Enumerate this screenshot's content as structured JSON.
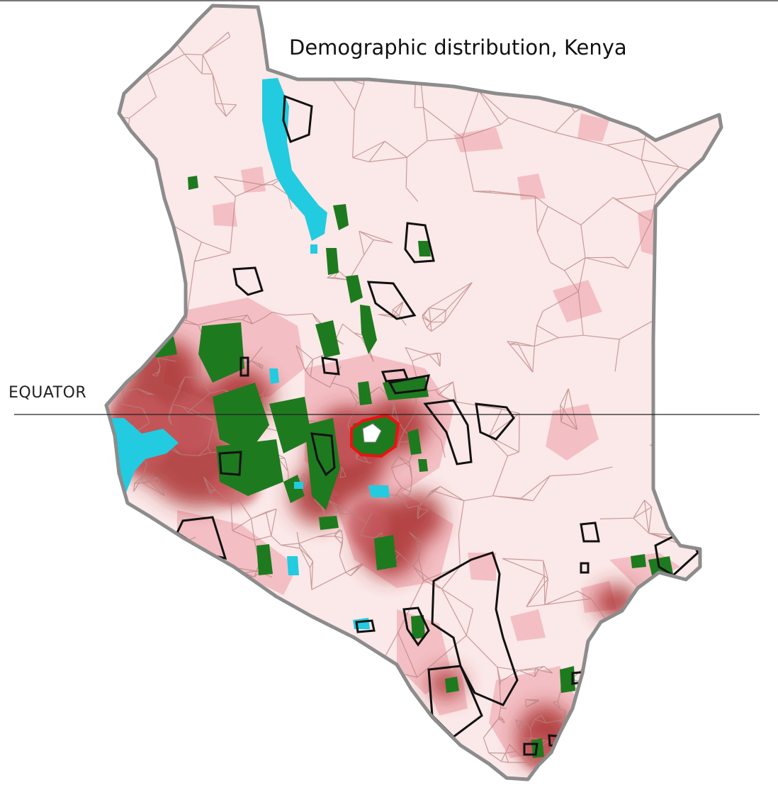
{
  "title": "Demographic distribution, Kenya",
  "equator_label": "EQUATOR",
  "colors": {
    "land_base": "#fbe8e8",
    "outline": "#8c8c8c",
    "district_lines": "#b98080",
    "low_density": "#f3bfc4",
    "high_density": "#a92d2d",
    "medium_density": "#c65a5e",
    "water": "#22cbe0",
    "forest": "#1e7a1e",
    "protected_area_outline": "#111111",
    "highlight_outline": "#ee1111",
    "equator_line": "#222222"
  },
  "legend_features": [
    "population-density-shading",
    "lake",
    "forest",
    "protected-area",
    "district-boundary",
    "equator"
  ]
}
